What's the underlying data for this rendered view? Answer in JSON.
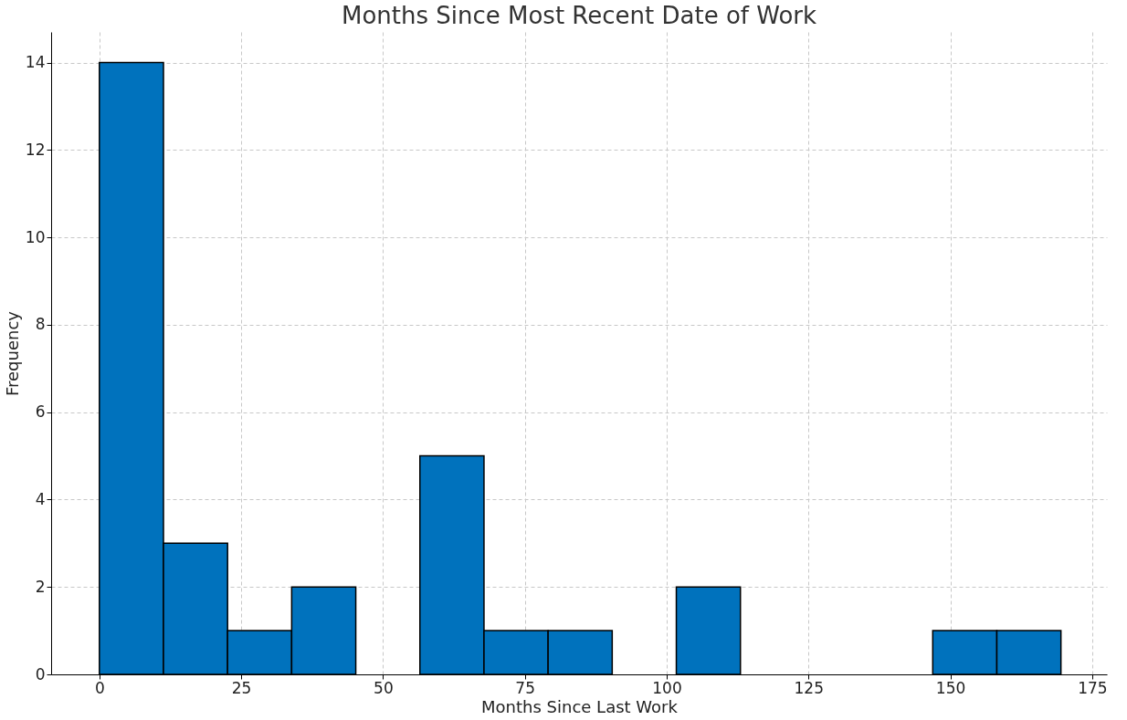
{
  "chart_data": {
    "type": "histogram",
    "title": "Months Since Most Recent Date of Work",
    "xlabel": "Months Since Last Work",
    "ylabel": "Frequency",
    "bins": [
      0,
      11.3,
      22.6,
      33.9,
      45.2,
      56.5,
      67.8,
      79.1,
      90.4,
      101.7,
      113,
      124.3,
      135.6,
      146.9,
      158.2,
      169.5
    ],
    "values": [
      14,
      3,
      1,
      2,
      0,
      5,
      1,
      1,
      0,
      2,
      0,
      0,
      0,
      1,
      1
    ],
    "color": "#0072bd",
    "xlim": [
      -8.5,
      177.6
    ],
    "xticks": [
      0,
      25,
      50,
      75,
      100,
      125,
      150,
      175
    ],
    "ylim": [
      0,
      14.7
    ],
    "yticks": [
      0,
      2,
      4,
      6,
      8,
      10,
      12,
      14
    ],
    "grid": true
  }
}
